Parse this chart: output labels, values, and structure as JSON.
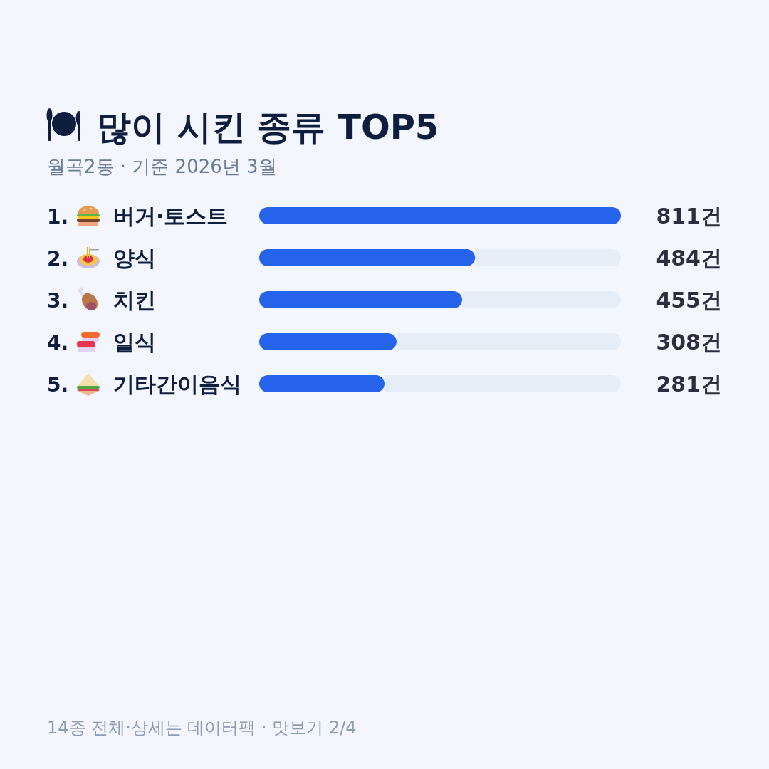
{
  "chart_data": {
    "type": "bar",
    "orientation": "horizontal",
    "title": "많이 시킨 종류 TOP5",
    "subtitle": "월곡2동 · 기준 2026년 3월",
    "categories": [
      "1. 버거·토스트",
      "2. 양식",
      "3. 치킨",
      "4. 일식",
      "5. 기타간이음식"
    ],
    "values": [
      811,
      484,
      455,
      308,
      281
    ],
    "color": "#2563eb",
    "value_labels": [
      "811건",
      "484건",
      "455건",
      "308건",
      "281건"
    ],
    "annotations": [
      "14종 전체·상세는 데이터팩 · 맛보기 2/4"
    ]
  }
}
